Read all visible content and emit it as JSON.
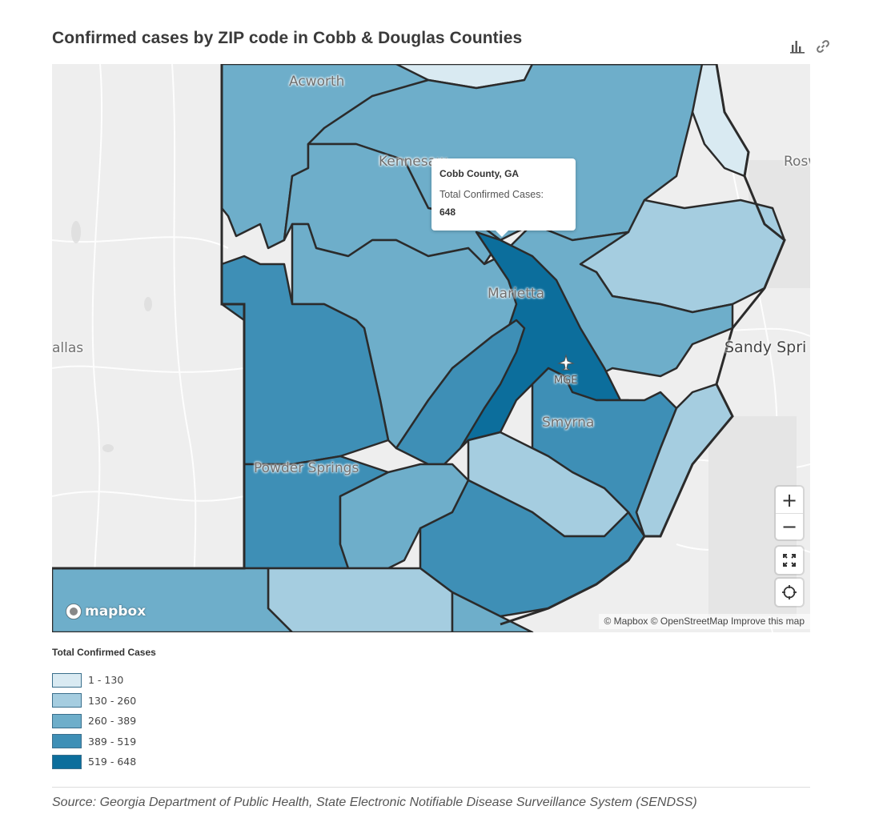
{
  "header": {
    "title": "Confirmed cases by ZIP code in Cobb & Douglas Counties",
    "tools": [
      {
        "name": "bar-chart-icon"
      },
      {
        "name": "link-icon"
      }
    ]
  },
  "colors": {
    "c1": "#d9eaf2",
    "c2": "#a5cde0",
    "c3": "#6eaeca",
    "c4": "#3e8fb6",
    "c5": "#0c6e9c",
    "basemap": "#eeeeee",
    "border": "#2b2b2b"
  },
  "map": {
    "places": {
      "acworth": "Acworth",
      "kennesaw": "Kennesaw",
      "marietta": "Marietta",
      "smyrna": "Smyrna",
      "powder_springs": "Powder Springs",
      "dallas": "allas",
      "sandy_springs": "Sandy Spri",
      "roswell": "Rosw",
      "airport_code": "MGE"
    },
    "tooltip": {
      "title": "Cobb County, GA",
      "label": "Total Confirmed Cases:",
      "value": "648"
    },
    "controls": {
      "zoom_in": "+",
      "zoom_out": "−",
      "fullscreen_icon": "fullscreen-icon",
      "locate_icon": "locate-icon"
    },
    "logo_text": "mapbox",
    "attribution": {
      "mapbox": "© Mapbox",
      "osm": "© OpenStreetMap",
      "improve": "Improve this map"
    }
  },
  "legend": {
    "title": "Total Confirmed Cases",
    "items": [
      {
        "label": "1 - 130",
        "color": "#d9eaf2"
      },
      {
        "label": "130 - 260",
        "color": "#a5cde0"
      },
      {
        "label": "260 - 389",
        "color": "#6eaeca"
      },
      {
        "label": "389 - 519",
        "color": "#3e8fb6"
      },
      {
        "label": "519 - 648",
        "color": "#0c6e9c"
      }
    ]
  },
  "source": "Source: Georgia Department of Public Health, State Electronic Notifiable Disease Surveillance System (SENDSS)"
}
